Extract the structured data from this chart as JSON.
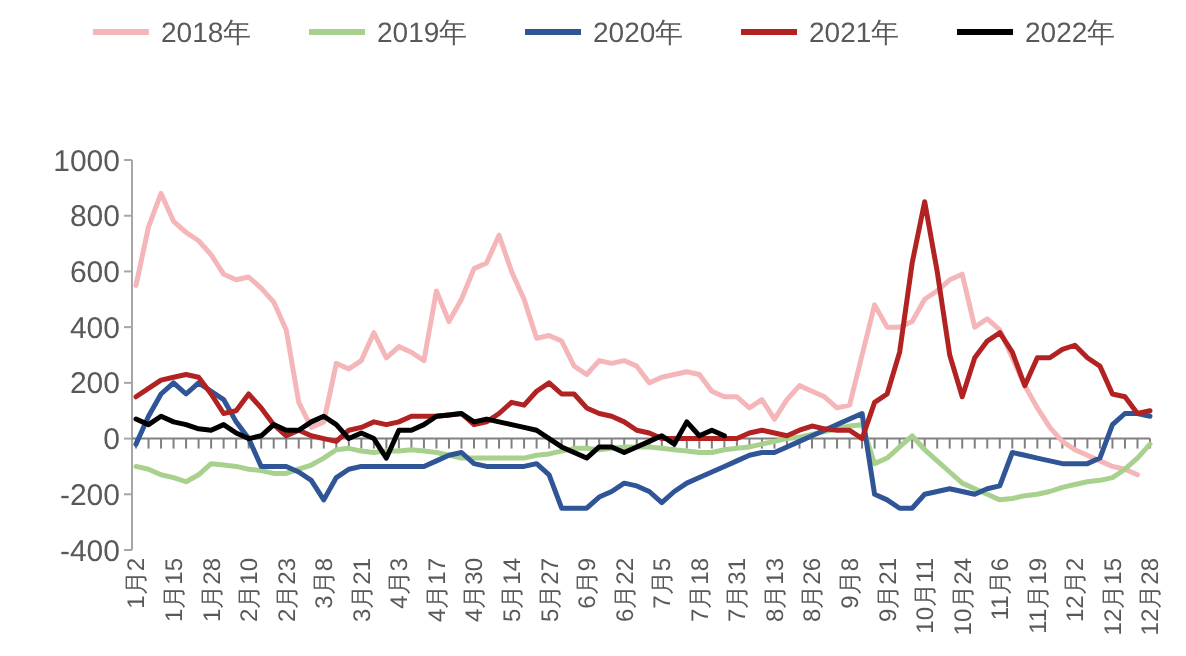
{
  "chart_data": {
    "type": "line",
    "legend": "top",
    "grid": false,
    "marker": "none",
    "line_style": "solid",
    "categories": [
      "1月2",
      null,
      null,
      "1月15",
      null,
      null,
      "1月28",
      null,
      null,
      "2月10",
      null,
      null,
      "2月23",
      null,
      null,
      "3月8",
      null,
      null,
      "3月21",
      null,
      null,
      "4月3",
      null,
      null,
      "4月17",
      null,
      null,
      "4月30",
      null,
      null,
      "5月14",
      null,
      null,
      "5月27",
      null,
      null,
      "6月9",
      null,
      null,
      "6月22",
      null,
      null,
      "7月5",
      null,
      null,
      "7月18",
      null,
      null,
      "7月31",
      null,
      null,
      "8月13",
      null,
      null,
      "8月26",
      null,
      null,
      "9月8",
      null,
      null,
      "9月21",
      null,
      null,
      "10月11",
      null,
      null,
      "10月24",
      null,
      null,
      "11月6",
      null,
      null,
      "11月19",
      null,
      null,
      "12月2",
      null,
      null,
      "12月15",
      null,
      null,
      "12月28"
    ],
    "ref_lines": [
      {
        "axis": "y",
        "value": 0,
        "color": "#808080"
      }
    ],
    "ylim": [
      -400,
      1000
    ],
    "yticks": [
      -400,
      -200,
      0,
      200,
      400,
      600,
      800,
      1000
    ],
    "series": [
      {
        "name": "2018年",
        "color": "#f4b6b8",
        "values": [
          550,
          760,
          880,
          780,
          740,
          710,
          660,
          590,
          570,
          580,
          540,
          490,
          390,
          130,
          40,
          60,
          270,
          250,
          280,
          380,
          290,
          330,
          310,
          280,
          530,
          420,
          500,
          610,
          630,
          730,
          600,
          500,
          360,
          370,
          350,
          260,
          230,
          280,
          270,
          280,
          260,
          200,
          220,
          230,
          240,
          230,
          170,
          150,
          150,
          110,
          140,
          70,
          140,
          190,
          170,
          150,
          110,
          120,
          300,
          480,
          400,
          400,
          420,
          500,
          530,
          570,
          590,
          400,
          430,
          390,
          290,
          190,
          110,
          40,
          -10,
          -40,
          -60,
          -80,
          -100,
          -110,
          -130,
          null
        ]
      },
      {
        "name": "2019年",
        "color": "#a9d18e",
        "values": [
          -100,
          -110,
          -130,
          -140,
          -155,
          -130,
          -90,
          -95,
          -100,
          -110,
          -115,
          -125,
          -125,
          -110,
          -95,
          -70,
          -40,
          -35,
          -45,
          -50,
          -45,
          -45,
          -40,
          -45,
          -50,
          -60,
          -70,
          -70,
          -70,
          -70,
          -70,
          -70,
          -60,
          -55,
          -45,
          -35,
          -35,
          -40,
          -35,
          -30,
          -30,
          -30,
          -35,
          -40,
          -45,
          -50,
          -50,
          -40,
          -35,
          -30,
          -20,
          -10,
          0,
          5,
          15,
          25,
          35,
          45,
          50,
          -90,
          -70,
          -30,
          10,
          -40,
          -80,
          -120,
          -160,
          -180,
          -200,
          -220,
          -215,
          -205,
          -200,
          -190,
          -175,
          -165,
          -155,
          -150,
          -140,
          -110,
          -70,
          -20
        ]
      },
      {
        "name": "2020年",
        "color": "#2f5597",
        "values": [
          -20,
          80,
          160,
          200,
          160,
          200,
          170,
          140,
          60,
          0,
          -100,
          -100,
          -100,
          -120,
          -150,
          -220,
          -140,
          -110,
          -100,
          -100,
          -100,
          -100,
          -100,
          -100,
          -80,
          -60,
          -50,
          -90,
          -100,
          -100,
          -100,
          -100,
          -90,
          -130,
          -250,
          -250,
          -250,
          -210,
          -190,
          -160,
          -170,
          -190,
          -230,
          -190,
          -160,
          -140,
          -120,
          -100,
          -80,
          -60,
          -50,
          -50,
          -30,
          -10,
          10,
          30,
          50,
          70,
          90,
          -200,
          -220,
          -250,
          -250,
          -200,
          -190,
          -180,
          -190,
          -200,
          -180,
          -170,
          -50,
          -60,
          -70,
          -80,
          -90,
          -90,
          -90,
          -70,
          50,
          90,
          90,
          80
        ]
      },
      {
        "name": "2021年",
        "color": "#b22222",
        "values": [
          150,
          180,
          210,
          220,
          230,
          220,
          160,
          90,
          100,
          160,
          110,
          50,
          10,
          30,
          10,
          0,
          -10,
          30,
          40,
          60,
          50,
          60,
          80,
          80,
          80,
          85,
          90,
          50,
          60,
          90,
          130,
          120,
          170,
          200,
          160,
          160,
          110,
          90,
          80,
          60,
          30,
          20,
          0,
          0,
          0,
          0,
          0,
          0,
          0,
          20,
          30,
          20,
          10,
          30,
          45,
          35,
          30,
          30,
          0,
          130,
          160,
          310,
          630,
          850,
          600,
          300,
          150,
          290,
          350,
          380,
          310,
          190,
          290,
          290,
          320,
          335,
          290,
          260,
          160,
          150,
          90,
          100
        ]
      },
      {
        "name": "2022年",
        "color": "#000000",
        "values": [
          70,
          50,
          80,
          60,
          50,
          35,
          30,
          50,
          20,
          0,
          10,
          50,
          30,
          30,
          60,
          80,
          50,
          0,
          20,
          0,
          -70,
          30,
          30,
          50,
          80,
          85,
          90,
          60,
          70,
          60,
          50,
          40,
          30,
          0,
          -30,
          -50,
          -70,
          -30,
          -30,
          -50,
          -30,
          -10,
          10,
          -20,
          60,
          10,
          30,
          10,
          null,
          null,
          null,
          null,
          null,
          null,
          null,
          null,
          null,
          null,
          null,
          null,
          null,
          null,
          null,
          null,
          null,
          null,
          null,
          null,
          null,
          null,
          null,
          null,
          null,
          null,
          null,
          null,
          null,
          null,
          null,
          null,
          null,
          null
        ]
      }
    ]
  }
}
